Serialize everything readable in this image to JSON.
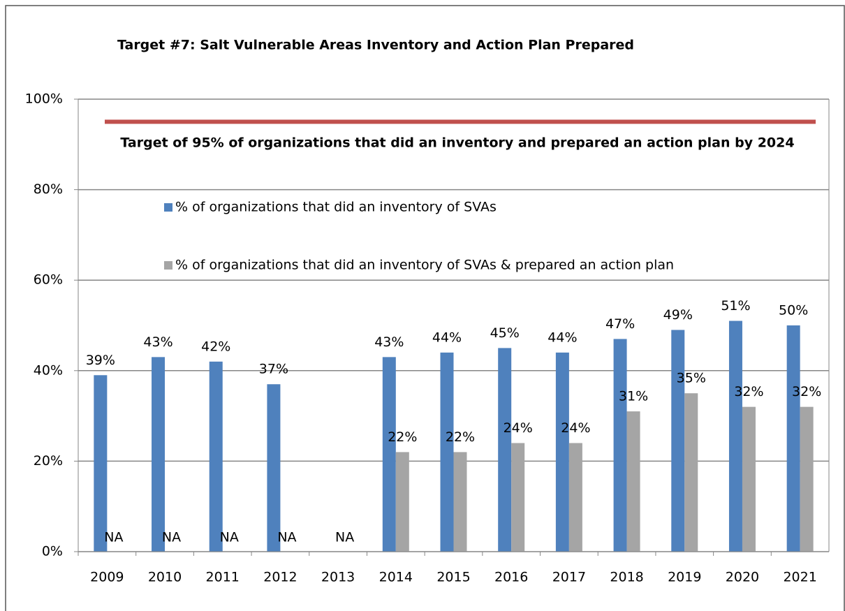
{
  "chart_data": {
    "type": "bar",
    "title": "Target #7: Salt Vulnerable Areas Inventory and Action Plan Prepared",
    "categories": [
      "2009",
      "2010",
      "2011",
      "2012",
      "2013",
      "2014",
      "2015",
      "2016",
      "2017",
      "2018",
      "2019",
      "2020",
      "2021"
    ],
    "series": [
      {
        "name": "% of organizations that did an inventory of SVAs",
        "color": "#4f81bd",
        "values": [
          39,
          43,
          42,
          37,
          null,
          43,
          44,
          45,
          44,
          47,
          49,
          51,
          50
        ],
        "value_labels": [
          "39%",
          "43%",
          "42%",
          "37%",
          null,
          "43%",
          "44%",
          "45%",
          "44%",
          "47%",
          "49%",
          "51%",
          "50%"
        ]
      },
      {
        "name": "% of organizations that did an inventory of SVAs & prepared an action plan",
        "color": "#a5a5a5",
        "values": [
          null,
          null,
          null,
          null,
          null,
          22,
          22,
          24,
          24,
          31,
          35,
          32,
          32
        ],
        "value_labels": [
          "NA",
          "NA",
          "NA",
          "NA",
          "NA",
          "22%",
          "22%",
          "24%",
          "24%",
          "31%",
          "35%",
          "32%",
          "32%"
        ]
      }
    ],
    "target": {
      "value": 95,
      "label": "Target of 95% of organizations  that did an inventory and prepared an action plan by 2024",
      "color": "#c0504d"
    },
    "ylim": [
      0,
      100
    ],
    "yticks": [
      {
        "value": 0,
        "label": "0%"
      },
      {
        "value": 20,
        "label": "20%"
      },
      {
        "value": 40,
        "label": "40%"
      },
      {
        "value": 60,
        "label": "60%"
      },
      {
        "value": 80,
        "label": "80%"
      },
      {
        "value": 100,
        "label": "100%"
      }
    ],
    "grid": true
  }
}
